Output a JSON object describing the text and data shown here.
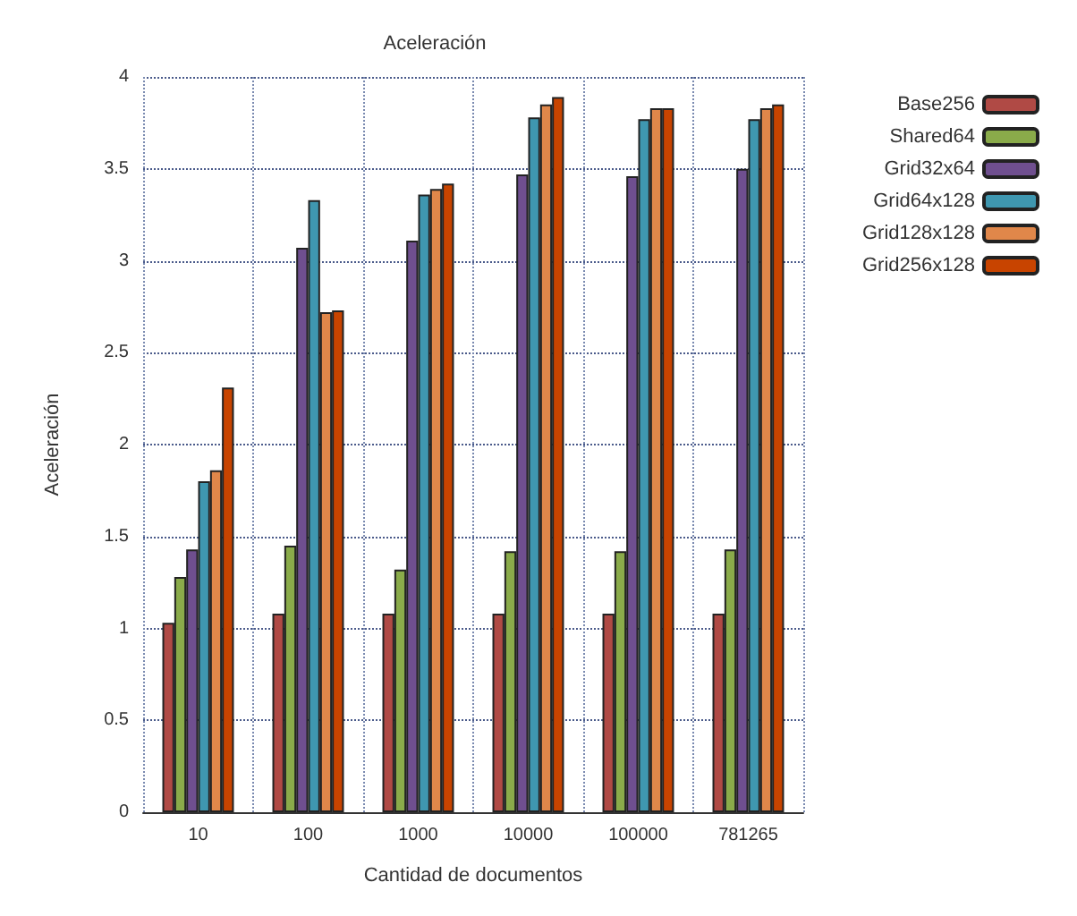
{
  "chart_data": {
    "type": "bar",
    "title": "Aceleración",
    "xlabel": "Cantidad de documentos",
    "ylabel": "Aceleración",
    "categories": [
      "10",
      "100",
      "1000",
      "10000",
      "100000",
      "781265"
    ],
    "series": [
      {
        "name": "Base256",
        "color": "#b04a45",
        "values": [
          1.03,
          1.08,
          1.08,
          1.08,
          1.08,
          1.08
        ]
      },
      {
        "name": "Shared64",
        "color": "#8aab4a",
        "values": [
          1.28,
          1.45,
          1.32,
          1.42,
          1.42,
          1.43
        ]
      },
      {
        "name": "Grid32x64",
        "color": "#6f4f8f",
        "values": [
          1.43,
          3.07,
          3.11,
          3.47,
          3.46,
          3.5
        ]
      },
      {
        "name": "Grid64x128",
        "color": "#3f97b0",
        "values": [
          1.8,
          3.33,
          3.36,
          3.78,
          3.77,
          3.77
        ]
      },
      {
        "name": "Grid128x128",
        "color": "#e0874a",
        "values": [
          1.86,
          2.72,
          3.39,
          3.85,
          3.83,
          3.83
        ]
      },
      {
        "name": "Grid256x128",
        "color": "#c84400",
        "values": [
          2.31,
          2.73,
          3.42,
          3.89,
          3.83,
          3.85
        ]
      }
    ],
    "ylim": [
      0,
      4
    ],
    "yticks": [
      0,
      0.5,
      1,
      1.5,
      2,
      2.5,
      3,
      3.5,
      4
    ],
    "grid": true,
    "legend": "top right"
  }
}
